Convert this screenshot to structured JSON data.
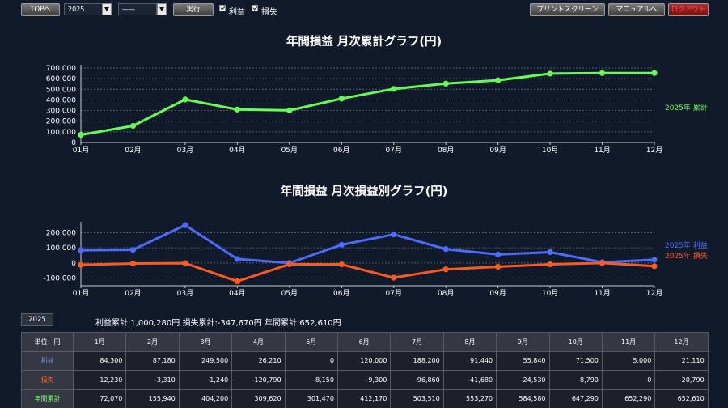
{
  "toolbar": {
    "top_label": "TOPへ",
    "year_value": "2025",
    "month_value": "——",
    "run_label": "実行",
    "profit_check_label": "利益",
    "loss_check_label": "損失",
    "print_label": "プリントスクリーン",
    "manual_label": "マニュアルへ",
    "red_label": "ログアウト"
  },
  "colors": {
    "cumulative": "#66ff55",
    "profit": "#4a6cff",
    "loss": "#ff5a1f",
    "background": "#111a2b"
  },
  "chart1": {
    "title": "年間損益 月次累計グラフ(円)",
    "y_ticks": [
      "700,000",
      "600,000",
      "500,000",
      "400,000",
      "300,000",
      "200,000",
      "100,000",
      "0"
    ],
    "legend": "2025年 累計"
  },
  "chart2": {
    "title": "年間損益 月次損益別グラフ(円)",
    "y_ticks": [
      "200,000",
      "100,000",
      "0",
      "-100,000"
    ],
    "legend_profit": "2025年 利益",
    "legend_loss": "2025年 損失"
  },
  "chart_data": [
    {
      "type": "line",
      "title": "年間損益 月次累計グラフ(円)",
      "categories": [
        "01月",
        "02月",
        "03月",
        "04月",
        "05月",
        "06月",
        "07月",
        "08月",
        "09月",
        "10月",
        "11月",
        "12月"
      ],
      "series": [
        {
          "name": "2025年 累計",
          "values": [
            72070,
            155940,
            404200,
            309620,
            301470,
            412170,
            503510,
            553270,
            584580,
            647290,
            652290,
            652610
          ]
        }
      ],
      "ylim": [
        0,
        700000
      ]
    },
    {
      "type": "line",
      "title": "年間損益 月次損益別グラフ(円)",
      "categories": [
        "01月",
        "02月",
        "03月",
        "04月",
        "05月",
        "06月",
        "07月",
        "08月",
        "09月",
        "10月",
        "11月",
        "12月"
      ],
      "series": [
        {
          "name": "2025年 利益",
          "values": [
            84300,
            87180,
            249500,
            26210,
            0,
            120000,
            188200,
            91440,
            55840,
            71500,
            5000,
            21110
          ]
        },
        {
          "name": "2025年 損失",
          "values": [
            -12230,
            -3310,
            -1240,
            -120790,
            -8150,
            -9300,
            -96860,
            -41680,
            -24530,
            -8790,
            0,
            -20790
          ]
        }
      ],
      "ylim": [
        -150000,
        250000
      ]
    }
  ],
  "summary": {
    "year_tab": "2025",
    "text": "利益累計:1,000,280円 損失累計:-347,670円 年間累計:652,610円"
  },
  "table": {
    "header": [
      "単位：円",
      "1月",
      "2月",
      "3月",
      "4月",
      "5月",
      "6月",
      "7月",
      "8月",
      "9月",
      "10月",
      "11月",
      "12月"
    ],
    "rows": [
      {
        "label": "利益",
        "cls": "c-profit",
        "values": [
          "84,300",
          "87,180",
          "249,500",
          "26,210",
          "0",
          "120,000",
          "188,200",
          "91,440",
          "55,840",
          "71,500",
          "5,000",
          "21,110"
        ]
      },
      {
        "label": "損失",
        "cls": "c-loss",
        "values": [
          "-12,230",
          "-3,310",
          "-1,240",
          "-120,790",
          "-8,150",
          "-9,300",
          "-96,860",
          "-41,680",
          "-24,530",
          "-8,790",
          "0",
          "-20,790"
        ]
      },
      {
        "label": "年間累計",
        "cls": "c-cum",
        "values": [
          "72,070",
          "155,940",
          "404,200",
          "309,620",
          "301,470",
          "412,170",
          "503,510",
          "553,270",
          "584,580",
          "647,290",
          "652,290",
          "652,610"
        ]
      }
    ]
  }
}
